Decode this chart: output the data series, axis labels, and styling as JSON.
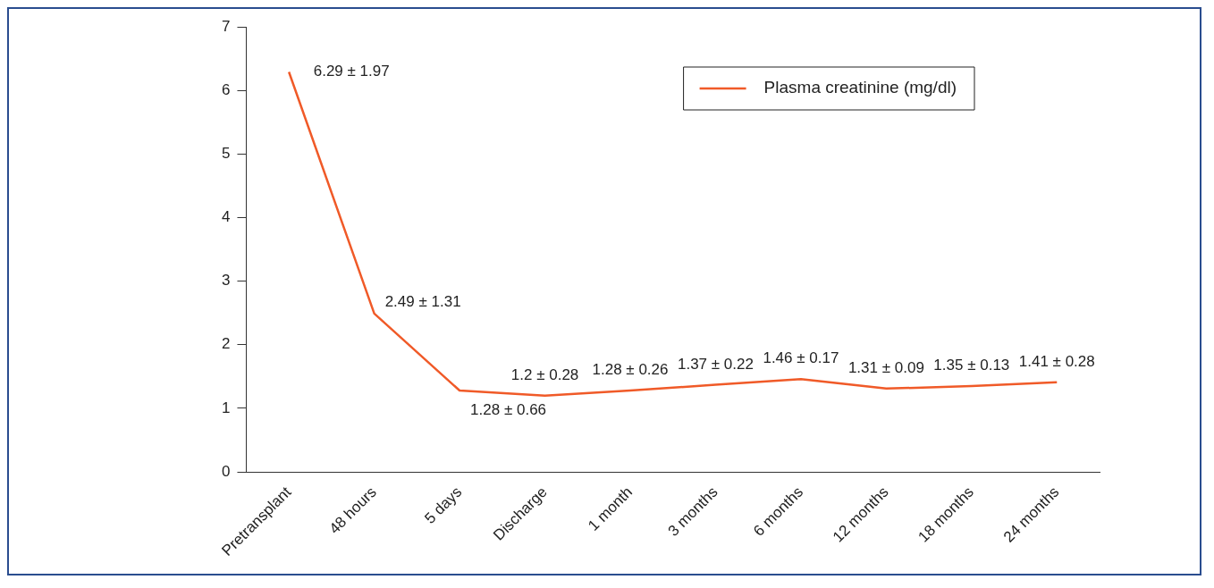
{
  "chart_data": {
    "type": "line",
    "categories": [
      "Pretransplant",
      "48 hours",
      "5 days",
      "Discharge",
      "1 month",
      "3 months",
      "6 months",
      "12 months",
      "18 months",
      "24 months"
    ],
    "series": [
      {
        "name": "Plasma creatinine (mg/dl)",
        "color": "#f05a28",
        "values": [
          6.29,
          2.49,
          1.28,
          1.2,
          1.28,
          1.37,
          1.46,
          1.31,
          1.35,
          1.41
        ],
        "value_labels": [
          "6.29 ± 1.97",
          "2.49 ± 1.31",
          "1.28 ± 0.66",
          "1.2 ± 0.28",
          "1.28 ± 0.26",
          "1.37 ± 0.22",
          "1.46 ± 0.17",
          "1.31 ± 0.09",
          "1.35 ± 0.13",
          "1.41 ± 0.28"
        ]
      }
    ],
    "ylim": [
      0,
      7
    ],
    "yticks": [
      0,
      1,
      2,
      3,
      4,
      5,
      6,
      7
    ],
    "grid": false,
    "legend": "top right",
    "marker": "none",
    "line_style": "solid"
  }
}
